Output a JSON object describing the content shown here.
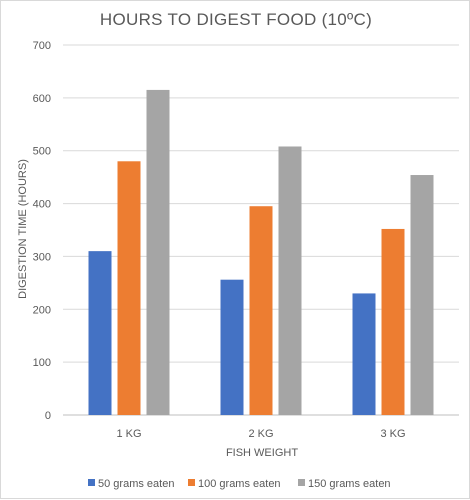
{
  "chart_data": {
    "type": "bar",
    "title": "HOURS TO DIGEST FOOD (10ºC)",
    "xlabel": "FISH WEIGHT",
    "ylabel": "DIGESTION TIME (HOURS)",
    "categories": [
      "1 KG",
      "2 KG",
      "3 KG"
    ],
    "series": [
      {
        "name": "50 grams eaten",
        "color": "#4472C4",
        "values": [
          310,
          256,
          230
        ]
      },
      {
        "name": "100 grams eaten",
        "color": "#ED7D31",
        "values": [
          480,
          395,
          352
        ]
      },
      {
        "name": "150 grams eaten",
        "color": "#A5A5A5",
        "values": [
          615,
          508,
          454
        ]
      }
    ],
    "ylim": [
      0,
      700
    ],
    "yticks": [
      0,
      100,
      200,
      300,
      400,
      500,
      600,
      700
    ],
    "grid": true,
    "legend_position": "bottom"
  }
}
